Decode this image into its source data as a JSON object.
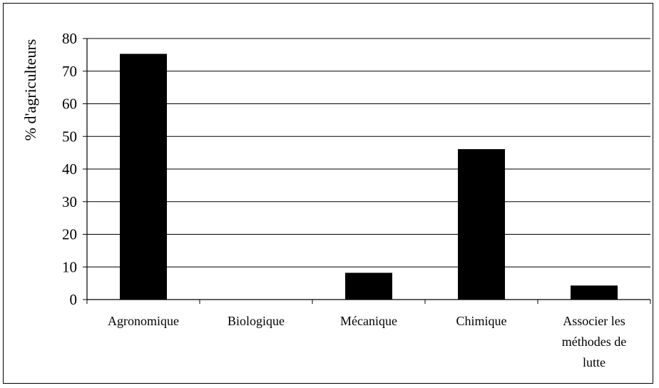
{
  "chart_data": {
    "type": "bar",
    "title": "",
    "xlabel": "",
    "ylabel": "% d'agriculteurs",
    "ylim": [
      0,
      80
    ],
    "yticks": [
      0,
      10,
      20,
      30,
      40,
      50,
      60,
      70,
      80
    ],
    "categories": [
      [
        "Agronomique"
      ],
      [
        "Biologique"
      ],
      [
        "Mécanique"
      ],
      [
        "Chimique"
      ],
      [
        "Associer les",
        "méthodes de",
        "lutte"
      ]
    ],
    "values": [
      75.3,
      0,
      8.2,
      46.1,
      4.3
    ],
    "grid": "horizontal",
    "bar_color": "#000000",
    "legend": "none"
  }
}
